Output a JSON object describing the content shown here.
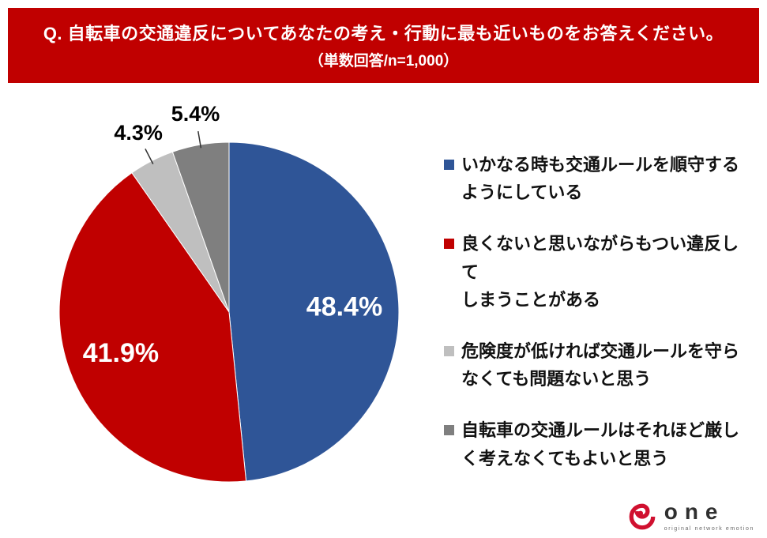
{
  "header": {
    "title": "Q. 自転車の交通違反についてあなたの考え・行動に最も近いものをお答えください。",
    "subtitle": "（単数回答/n=1,000）",
    "bg_color": "#c00000"
  },
  "chart_data": {
    "type": "pie",
    "title": "自転車の交通違反についての考え・行動",
    "n": "1,000",
    "start_angle_deg": 0,
    "direction": "clockwise",
    "legend_position": "right",
    "slices": [
      {
        "label": "いかなる時も交通ルールを順守するようにしている",
        "value": 48.4,
        "color": "#2f5597",
        "label_position": "inside"
      },
      {
        "label": "良くないと思いながらもつい違反してしまうことがある",
        "value": 41.9,
        "color": "#c00000",
        "label_position": "inside"
      },
      {
        "label": "危険度が低ければ交通ルールを守らなくても問題ないと思う",
        "value": 4.3,
        "color": "#bfbfbf",
        "label_position": "outside"
      },
      {
        "label": "自転車の交通ルールはそれほど厳しく考えなくてもよいと思う",
        "value": 5.4,
        "color": "#7f7f7f",
        "label_position": "outside"
      }
    ]
  },
  "legend": {
    "items": [
      {
        "lines": [
          "いかなる時も交通ルールを順守する",
          "ようにしている"
        ],
        "color": "#2f5597"
      },
      {
        "lines": [
          "良くないと思いながらもつい違反して",
          "しまうことがある"
        ],
        "color": "#c00000"
      },
      {
        "lines": [
          "危険度が低ければ交通ルールを守ら",
          "なくても問題ないと思う"
        ],
        "color": "#bfbfbf"
      },
      {
        "lines": [
          "自転車の交通ルールはそれほど厳し",
          "く考えなくてもよいと思う"
        ],
        "color": "#7f7f7f"
      }
    ]
  },
  "logo": {
    "brand": "one",
    "tagline": "original network emotion",
    "color": "#d0102f"
  }
}
